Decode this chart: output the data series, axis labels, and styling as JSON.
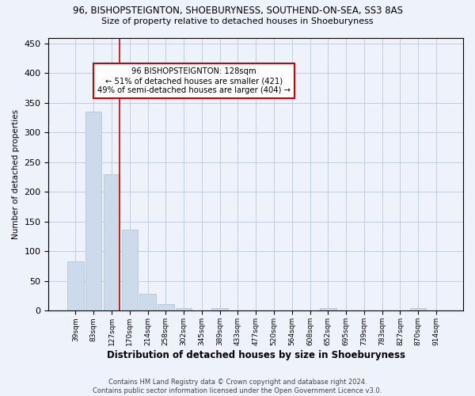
{
  "title": "96, BISHOPSTEIGNTON, SHOEBURYNESS, SOUTHEND-ON-SEA, SS3 8AS",
  "subtitle": "Size of property relative to detached houses in Shoeburyness",
  "xlabel": "Distribution of detached houses by size in Shoeburyness",
  "ylabel": "Number of detached properties",
  "bar_color": "#ccdaeb",
  "bar_edge_color": "#aac0d8",
  "categories": [
    "39sqm",
    "83sqm",
    "127sqm",
    "170sqm",
    "214sqm",
    "258sqm",
    "302sqm",
    "345sqm",
    "389sqm",
    "433sqm",
    "477sqm",
    "520sqm",
    "564sqm",
    "608sqm",
    "652sqm",
    "695sqm",
    "739sqm",
    "783sqm",
    "827sqm",
    "870sqm",
    "914sqm"
  ],
  "values": [
    83,
    335,
    230,
    136,
    29,
    11,
    5,
    0,
    5,
    0,
    0,
    1,
    0,
    0,
    4,
    0,
    0,
    0,
    0,
    4,
    0
  ],
  "vline_index": 2.45,
  "vline_color": "#cc0000",
  "annotation_text": "96 BISHOPSTEIGNTON: 128sqm\n← 51% of detached houses are smaller (421)\n49% of semi-detached houses are larger (404) →",
  "annotation_box_color": "#ffffff",
  "annotation_box_edge": "#cc0000",
  "ylim": [
    0,
    460
  ],
  "yticks": [
    0,
    50,
    100,
    150,
    200,
    250,
    300,
    350,
    400,
    450
  ],
  "grid_color": "#c0cce0",
  "background_color": "#eef2fb",
  "footer_line1": "Contains HM Land Registry data © Crown copyright and database right 2024.",
  "footer_line2": "Contains public sector information licensed under the Open Government Licence v3.0."
}
